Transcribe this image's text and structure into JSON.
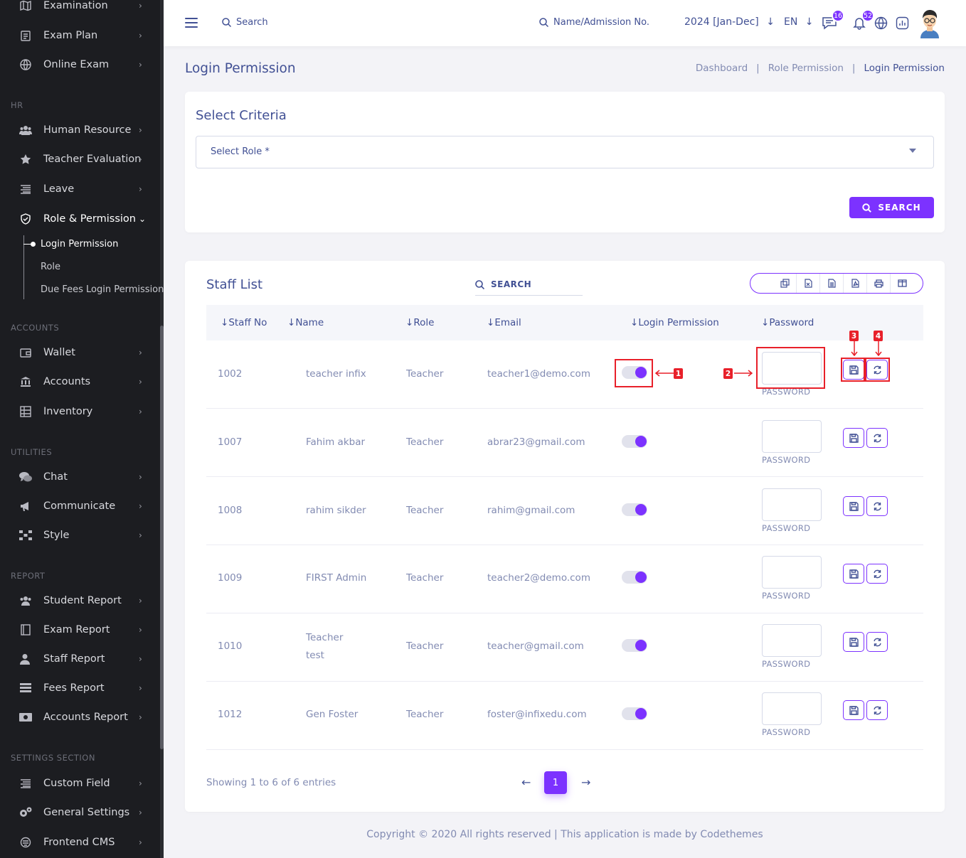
{
  "sidebar": {
    "items_top": [
      {
        "label": "Examination",
        "icon": "map-icon"
      },
      {
        "label": "Exam Plan",
        "icon": "clipboard-icon"
      },
      {
        "label": "Online Exam",
        "icon": "globe-icon"
      }
    ],
    "sections": {
      "hr": "HR",
      "accounts": "ACCOUNTS",
      "utilities": "UTILITIES",
      "report": "REPORT",
      "settings": "SETTINGS SECTION"
    },
    "hr_items": [
      {
        "label": "Human Resource",
        "icon": "users-icon"
      },
      {
        "label": "Teacher Evaluation",
        "icon": "star-icon"
      },
      {
        "label": "Leave",
        "icon": "list-icon"
      },
      {
        "label": "Role & Permission",
        "icon": "shield-icon"
      }
    ],
    "role_sub": [
      "Login Permission",
      "Role",
      "Due Fees Login Permission"
    ],
    "accounts_items": [
      {
        "label": "Wallet",
        "icon": "wallet-icon"
      },
      {
        "label": "Accounts",
        "icon": "bank-icon"
      },
      {
        "label": "Inventory",
        "icon": "inventory-icon"
      }
    ],
    "utilities_items": [
      {
        "label": "Chat",
        "icon": "chat-icon"
      },
      {
        "label": "Communicate",
        "icon": "megaphone-icon"
      },
      {
        "label": "Style",
        "icon": "style-icon"
      }
    ],
    "report_items": [
      {
        "label": "Student Report",
        "icon": "users-icon"
      },
      {
        "label": "Exam Report",
        "icon": "book-icon"
      },
      {
        "label": "Staff Report",
        "icon": "user-icon"
      },
      {
        "label": "Fees Report",
        "icon": "stack-icon"
      },
      {
        "label": "Accounts Report",
        "icon": "money-icon"
      }
    ],
    "settings_items": [
      {
        "label": "Custom Field",
        "icon": "list-icon"
      },
      {
        "label": "General Settings",
        "icon": "gears-icon"
      },
      {
        "label": "Frontend CMS",
        "icon": "cms-icon"
      }
    ]
  },
  "topbar": {
    "search_label": "Search",
    "name_search_label": "Name/Admission No.",
    "academic_year": "2024 [Jan-Dec]",
    "language": "EN",
    "chat_badge": "16",
    "notification_badge": "52"
  },
  "page": {
    "title": "Login Permission",
    "breadcrumb": [
      "Dashboard",
      "Role Permission",
      "Login Permission"
    ]
  },
  "criteria": {
    "title": "Select Criteria",
    "select_role_placeholder": "Select Role *",
    "search_button": "SEARCH"
  },
  "staff_list": {
    "title": "Staff List",
    "search_label": "SEARCH",
    "columns": [
      "Staff No",
      "Name",
      "Role",
      "Email",
      "Login Permission",
      "Password"
    ],
    "password_label": "PASSWORD",
    "rows": [
      {
        "staff_no": "1002",
        "name": "teacher infix",
        "role": "Teacher",
        "email": "teacher1@demo.com"
      },
      {
        "staff_no": "1007",
        "name": "Fahim akbar",
        "role": "Teacher",
        "email": "abrar23@gmail.com"
      },
      {
        "staff_no": "1008",
        "name": "rahim sikder",
        "role": "Teacher",
        "email": "rahim@gmail.com"
      },
      {
        "staff_no": "1009",
        "name": "FIRST Admin",
        "role": "Teacher",
        "email": "teacher2@demo.com"
      },
      {
        "staff_no": "1010",
        "name_line1": "Teacher",
        "name_line2": "test",
        "role": "Teacher",
        "email": "teacher@gmail.com"
      },
      {
        "staff_no": "1012",
        "name": "Gen Foster",
        "role": "Teacher",
        "email": "foster@infixedu.com"
      }
    ],
    "showing": "Showing 1 to 6 of 6 entries",
    "current_page": "1"
  },
  "annotations": [
    "1",
    "2",
    "3",
    "4"
  ],
  "footer": "Copyright © 2020 All rights reserved | This application is made by Codethemes",
  "colors": {
    "accent": "#7c32ff",
    "text": "#415094",
    "muted": "#828bb2",
    "sidebar": "#1c1d21",
    "annotation": "#e8202a"
  }
}
